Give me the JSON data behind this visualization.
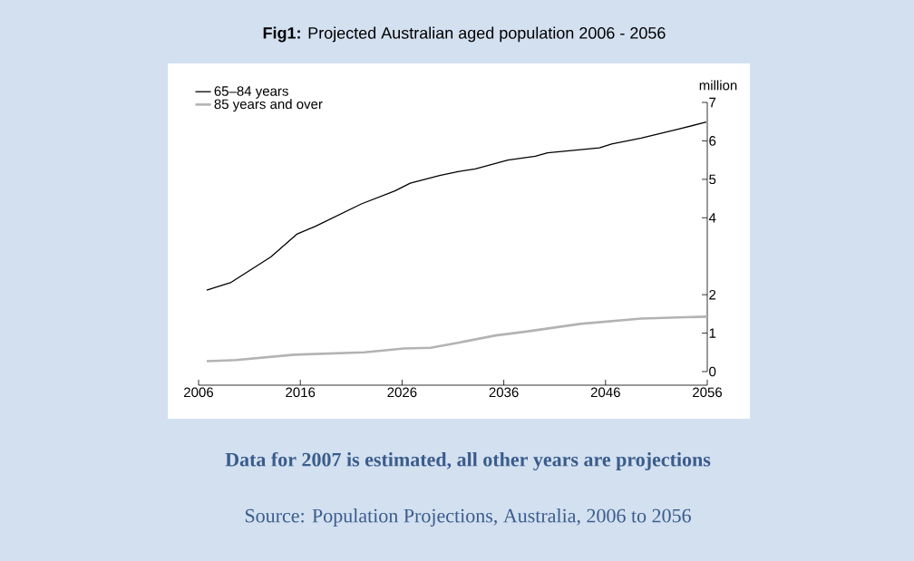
{
  "chart_data": {
    "type": "line",
    "title": "**Fig1:** Projected Australian aged population 2006 - 2056",
    "ylabel": "million",
    "annotations": [
      "Data for 2007 is estimated, all other years are projections",
      "Source: Population Projections, Australia, 2006 to 2056"
    ],
    "xlim": [
      2006,
      2056
    ],
    "xticks": [
      2006,
      2016,
      2026,
      2036,
      2046,
      2056
    ],
    "ylim": [
      0,
      7
    ],
    "yticks": [
      0,
      1,
      2,
      4,
      5,
      6,
      7
    ],
    "legend": "top left",
    "marker": "none",
    "line_style": "solid",
    "series": [
      {
        "name": "65–84 years",
        "color": "#000000",
        "x": [
          2006.8,
          2009.2,
          2013.1,
          2015.7,
          2017.5,
          2022.0,
          2025.3,
          2026.8,
          2029.7,
          2031.5,
          2033.2,
          2036.4,
          2039.1,
          2040.3,
          2045.4,
          2046.6,
          2049.5,
          2053.1,
          2055.9
        ],
        "values": [
          2.12,
          2.32,
          2.98,
          3.58,
          3.78,
          4.36,
          4.7,
          4.9,
          5.1,
          5.2,
          5.27,
          5.5,
          5.6,
          5.69,
          5.82,
          5.92,
          6.07,
          6.3,
          6.49
        ]
      },
      {
        "name": "85 years and over",
        "color": "#b3b3b3",
        "x": [
          2006.8,
          2009.7,
          2015.4,
          2022.3,
          2026.2,
          2028.8,
          2031.5,
          2035.2,
          2038.2,
          2043.5,
          2049.5,
          2056
        ],
        "values": [
          0.27,
          0.3,
          0.44,
          0.5,
          0.6,
          0.62,
          0.75,
          0.94,
          1.04,
          1.24,
          1.38,
          1.43
        ]
      }
    ]
  }
}
